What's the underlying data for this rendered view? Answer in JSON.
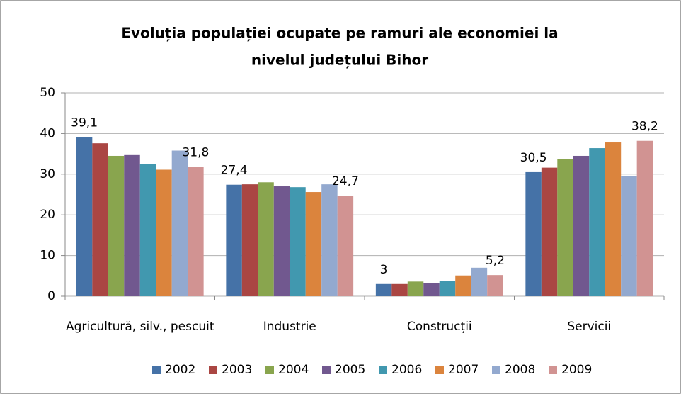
{
  "chart_data": {
    "type": "bar",
    "title": [
      "Evoluția populației ocupate pe ramuri ale economiei la",
      "nivelul județului Bihor"
    ],
    "categories": [
      "Agricultură, silv., pescuit",
      "Industrie",
      "Construcții",
      "Servicii"
    ],
    "series": [
      {
        "name": "2002",
        "color": "#4572a7",
        "values": [
          39.1,
          27.4,
          3,
          30.5
        ],
        "value_labels": [
          "39,1",
          "27,4",
          "3",
          "30,5"
        ]
      },
      {
        "name": "2003",
        "color": "#aa4643",
        "values": [
          37.6,
          27.5,
          3.0,
          31.6
        ]
      },
      {
        "name": "2004",
        "color": "#89a54e",
        "values": [
          34.5,
          28.0,
          3.6,
          33.7
        ]
      },
      {
        "name": "2005",
        "color": "#71588f",
        "values": [
          34.7,
          27.0,
          3.3,
          34.5
        ]
      },
      {
        "name": "2006",
        "color": "#4198af",
        "values": [
          32.5,
          26.8,
          3.8,
          36.4
        ]
      },
      {
        "name": "2007",
        "color": "#db843d",
        "values": [
          31.1,
          25.6,
          5.1,
          37.8
        ]
      },
      {
        "name": "2008",
        "color": "#93a9cf",
        "values": [
          35.8,
          27.5,
          7.0,
          29.6
        ]
      },
      {
        "name": "2009",
        "color": "#d19392",
        "values": [
          31.8,
          24.7,
          5.2,
          38.2
        ],
        "value_labels": [
          "31,8",
          "24,7",
          "5,2",
          "38,2"
        ]
      }
    ],
    "ylim": [
      0,
      50
    ],
    "yticks": [
      0,
      10,
      20,
      30,
      40,
      50
    ],
    "grid": true,
    "legend": "bottom"
  }
}
